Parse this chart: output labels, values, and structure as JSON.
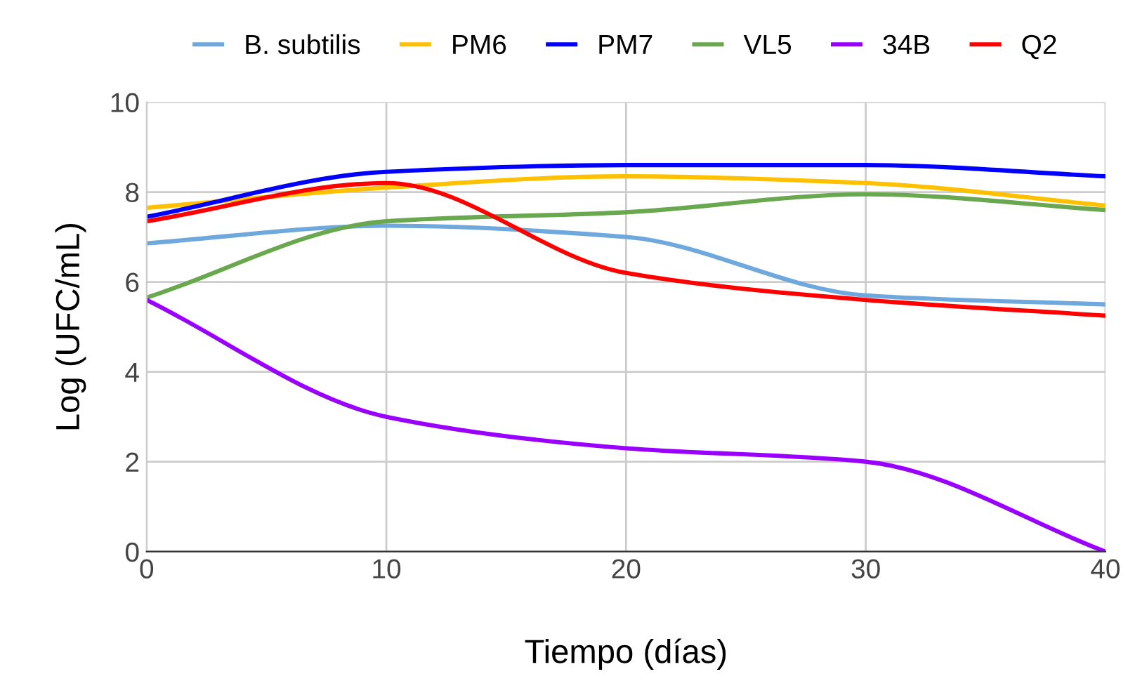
{
  "chart_data": {
    "type": "line",
    "xlabel": "Tiempo (días)",
    "ylabel": "Log (UFC/mL)",
    "x": [
      0,
      10,
      20,
      30,
      40
    ],
    "series": [
      {
        "name": "B. subtilis",
        "color": "#6fa8dc",
        "values": [
          6.86,
          7.25,
          7.0,
          5.7,
          5.5
        ]
      },
      {
        "name": "PM6",
        "color": "#ffc000",
        "values": [
          7.65,
          8.1,
          8.35,
          8.2,
          7.7
        ]
      },
      {
        "name": "PM7",
        "color": "#0000ff",
        "values": [
          7.45,
          8.45,
          8.6,
          8.6,
          8.35
        ]
      },
      {
        "name": "VL5",
        "color": "#6aa84f",
        "values": [
          5.65,
          7.35,
          7.55,
          7.95,
          7.6
        ]
      },
      {
        "name": "34B",
        "color": "#9900ff",
        "values": [
          5.6,
          3.0,
          2.3,
          2.0,
          0
        ]
      },
      {
        "name": "Q2",
        "color": "#ff0000",
        "values": [
          7.35,
          8.2,
          6.2,
          5.6,
          5.25
        ]
      }
    ],
    "xlim": [
      0,
      40
    ],
    "xticks": [
      0,
      10,
      20,
      30,
      40
    ],
    "ylim": [
      0,
      10
    ],
    "yticks": [
      0,
      2,
      4,
      6,
      8,
      10
    ],
    "grid": true,
    "legend": "top",
    "marker": "none",
    "line_style": "solid"
  }
}
